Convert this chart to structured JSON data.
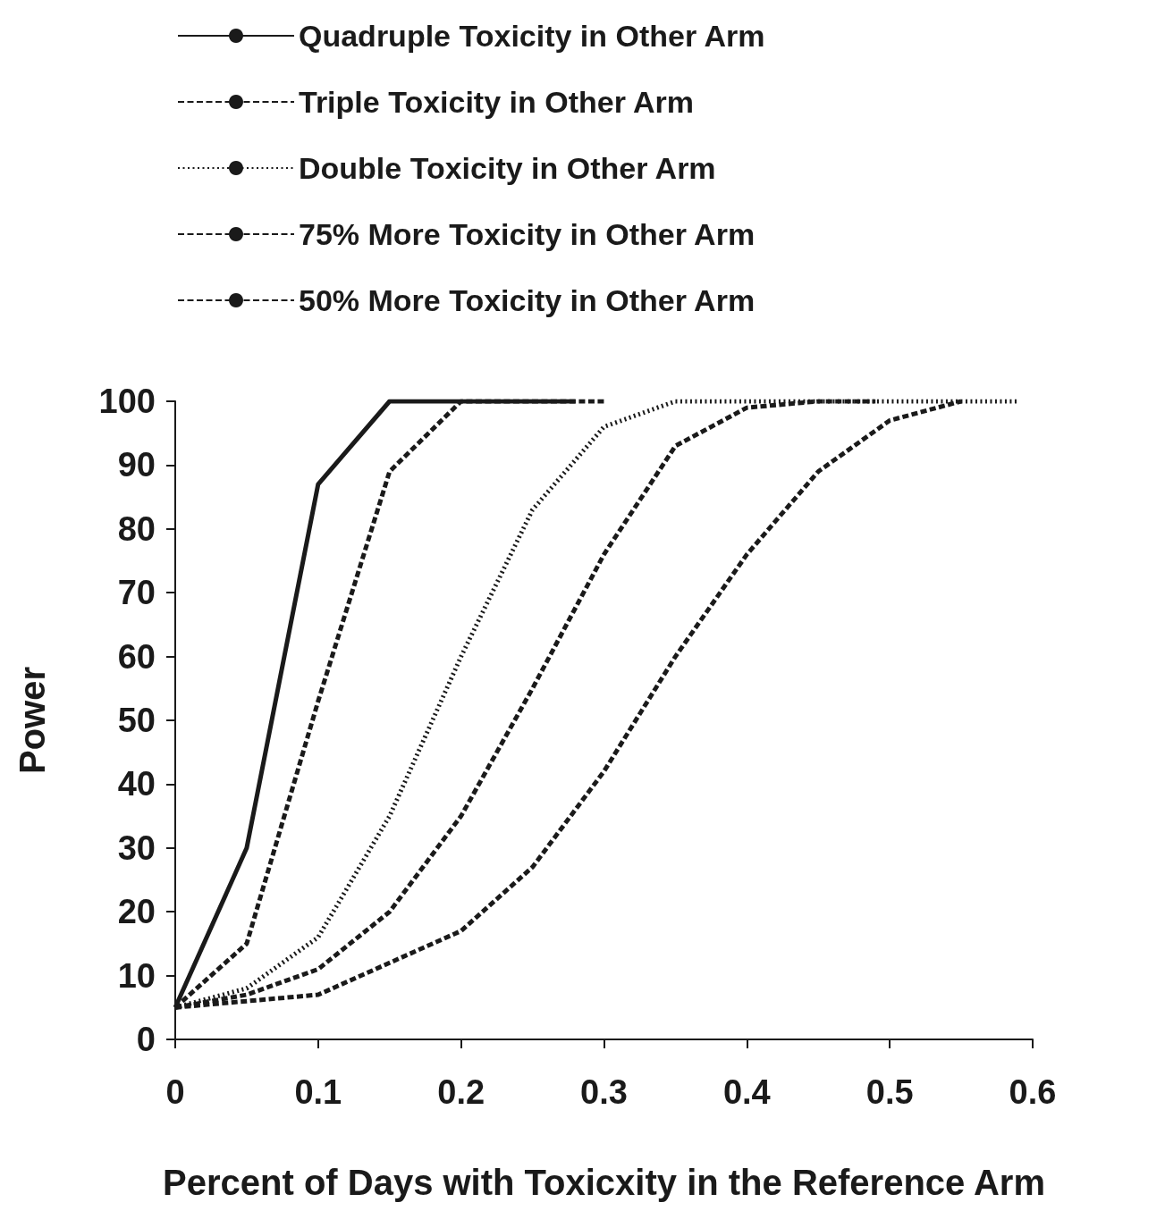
{
  "chart_data": {
    "type": "line",
    "xlabel": "Percent of Days with Toxicxity in the Reference Arm",
    "ylabel": "Power",
    "xlim": [
      0,
      0.6
    ],
    "xticks": [
      0,
      0.1,
      0.2,
      0.3,
      0.4,
      0.5,
      0.6
    ],
    "ylim": [
      0,
      100
    ],
    "yticks": [
      0,
      10,
      20,
      30,
      40,
      50,
      60,
      70,
      80,
      90,
      100
    ],
    "grid": false,
    "legend": "top left",
    "marker": "none",
    "series": [
      {
        "name": "Quadruple Toxicity in Other Arm",
        "color": "#1a1a1a",
        "line_style": "solid",
        "x": [
          0,
          0.05,
          0.1,
          0.15,
          0.2,
          0.25,
          0.28
        ],
        "values": [
          5,
          30,
          87,
          100,
          100,
          100,
          100
        ]
      },
      {
        "name": "Triple Toxicity in Other Arm",
        "color": "#1a1a1a",
        "line_style": "dashed",
        "x": [
          0,
          0.05,
          0.1,
          0.15,
          0.2,
          0.25,
          0.3
        ],
        "values": [
          5,
          15,
          53,
          89,
          100,
          100,
          100
        ]
      },
      {
        "name": "Double Toxicity in Other Arm",
        "color": "#1a1a1a",
        "line_style": "dotted",
        "x": [
          0,
          0.05,
          0.1,
          0.15,
          0.2,
          0.25,
          0.3,
          0.35,
          0.4,
          0.45,
          0.5,
          0.55,
          0.59
        ],
        "values": [
          5,
          8,
          16,
          35,
          60,
          83,
          96,
          100,
          100,
          100,
          100,
          100,
          100
        ]
      },
      {
        "name": "75% More Toxicity in Other Arm",
        "color": "#1a1a1a",
        "line_style": "dashed",
        "x": [
          0,
          0.05,
          0.1,
          0.15,
          0.2,
          0.25,
          0.3,
          0.35,
          0.4,
          0.45,
          0.49
        ],
        "values": [
          5,
          7,
          11,
          20,
          35,
          55,
          76,
          93,
          99,
          100,
          100
        ]
      },
      {
        "name": "50% More Toxicity in Other Arm",
        "color": "#1a1a1a",
        "line_style": "dashed",
        "x": [
          0,
          0.05,
          0.1,
          0.15,
          0.2,
          0.25,
          0.3,
          0.35,
          0.4,
          0.45,
          0.5,
          0.55
        ],
        "values": [
          5,
          6,
          7,
          12,
          17,
          27,
          42,
          60,
          76,
          89,
          97,
          100
        ]
      }
    ]
  }
}
